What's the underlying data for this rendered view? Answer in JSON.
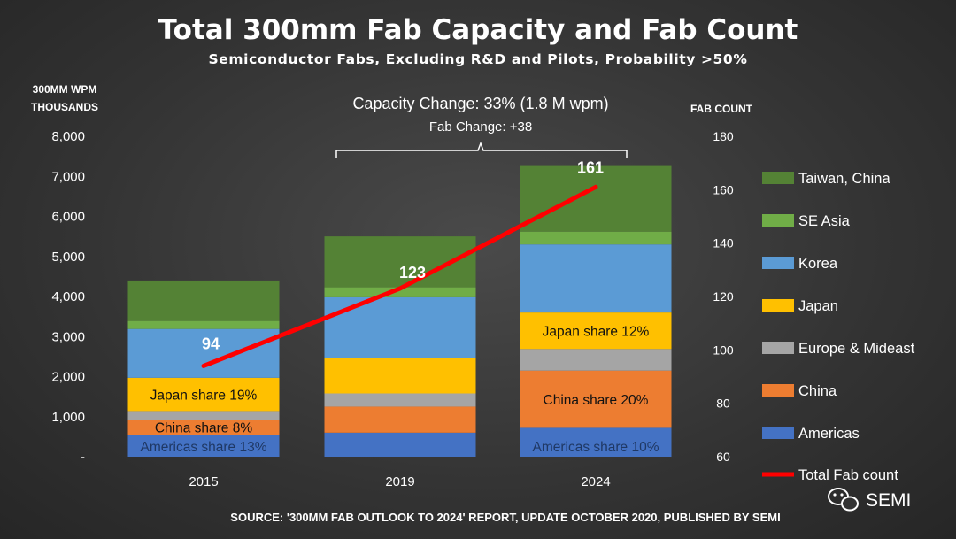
{
  "chart_data": {
    "type": "bar",
    "title": "Total 300mm Fab Capacity and Fab Count",
    "subtitle": "Semiconductor Fabs, Excluding R&D and Pilots, Probability >50%",
    "ylabel_left": [
      "300MM WPM",
      "THOUSANDS"
    ],
    "ylabel_right": "FAB COUNT",
    "categories": [
      "2015",
      "2019",
      "2024"
    ],
    "left_ticks": [
      "-",
      "1,000",
      "2,000",
      "3,000",
      "4,000",
      "5,000",
      "6,000",
      "7,000",
      "8,000"
    ],
    "right_ticks": [
      "60",
      "80",
      "100",
      "120",
      "140",
      "160",
      "180"
    ],
    "ylim_left": [
      0,
      8000
    ],
    "ylim_right": [
      60,
      180
    ],
    "grid": false,
    "legend_position": "right",
    "series": [
      {
        "name": "Americas",
        "color": "#4472C4",
        "values": [
          550,
          600,
          720
        ]
      },
      {
        "name": "China",
        "color": "#ED7D31",
        "values": [
          370,
          650,
          1430
        ]
      },
      {
        "name": "Europe & Mideast",
        "color": "#A5A5A5",
        "values": [
          220,
          330,
          540
        ]
      },
      {
        "name": "Japan",
        "color": "#FFC000",
        "values": [
          830,
          880,
          910
        ]
      },
      {
        "name": "Korea",
        "color": "#5B9BD5",
        "values": [
          1220,
          1520,
          1700
        ]
      },
      {
        "name": "SE Asia",
        "color": "#70AD47",
        "values": [
          200,
          250,
          320
        ]
      },
      {
        "name": "Taiwan, China",
        "color": "#548235",
        "values": [
          1010,
          1270,
          1660
        ]
      }
    ],
    "line_series": {
      "name": "Total Fab count",
      "color": "#FF0000",
      "values": [
        94,
        123,
        161
      ]
    },
    "line_labels": [
      "94",
      "123",
      "161"
    ],
    "bar_annotations": [
      {
        "bar": 0,
        "series": "Americas",
        "text": "Americas share 13%",
        "color": "#1F3864"
      },
      {
        "bar": 0,
        "series": "China",
        "text": "China share 8%",
        "color": "#111111"
      },
      {
        "bar": 0,
        "series": "Japan",
        "text": "Japan share 19%",
        "color": "#111111"
      },
      {
        "bar": 2,
        "series": "Americas",
        "text": "Americas share 10%",
        "color": "#1F3864"
      },
      {
        "bar": 2,
        "series": "China",
        "text": "China share 20%",
        "color": "#111111"
      },
      {
        "bar": 2,
        "series": "Japan",
        "text": "Japan share 12%",
        "color": "#111111"
      }
    ],
    "annotations": {
      "capacity_change": "Capacity Change: 33% (1.8 M wpm)",
      "fab_change": "Fab Change: +38"
    },
    "source": "SOURCE: '300MM FAB OUTLOOK TO 2024' REPORT, UPDATE OCTOBER 2020, PUBLISHED BY SEMI",
    "logo_text": "SEMI"
  }
}
